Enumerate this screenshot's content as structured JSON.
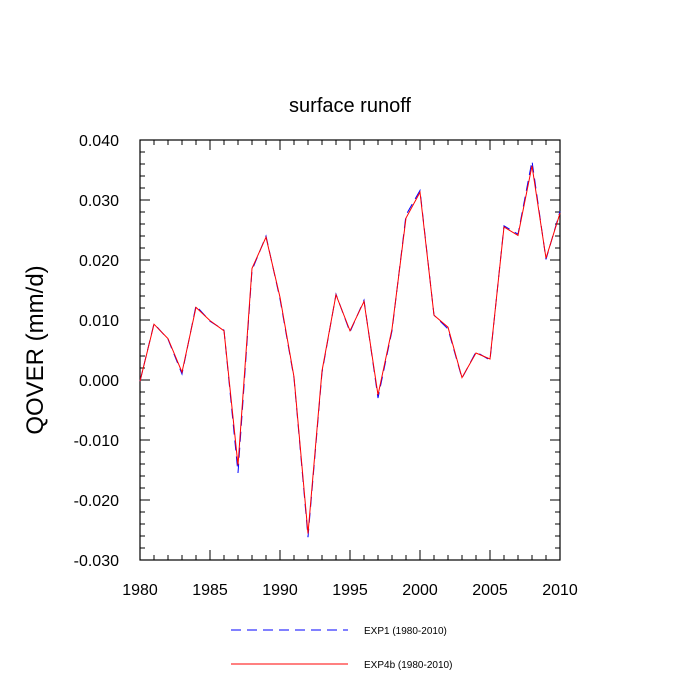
{
  "chart_data": {
    "type": "line",
    "title": "surface runoff",
    "ylabel": "QOVER  (mm/d)",
    "xlabel": "",
    "xlim": [
      1980,
      2010
    ],
    "ylim": [
      -0.03,
      0.04
    ],
    "x_ticks": [
      1980,
      1985,
      1990,
      1995,
      2000,
      2005,
      2010
    ],
    "x_tick_labels": [
      "1980",
      "1985",
      "1990",
      "1995",
      "2000",
      "2005",
      "2010"
    ],
    "y_ticks": [
      -0.03,
      -0.02,
      -0.01,
      0.0,
      0.01,
      0.02,
      0.03,
      0.04
    ],
    "y_tick_labels": [
      "-0.030",
      "-0.020",
      "-0.010",
      "0.000",
      "0.010",
      "0.020",
      "0.030",
      "0.040"
    ],
    "grid": false,
    "legend_position": "bottom",
    "x": [
      1980,
      1981,
      1982,
      1983,
      1984,
      1985,
      1986,
      1987,
      1988,
      1989,
      1990,
      1991,
      1992,
      1993,
      1994,
      1995,
      1996,
      1997,
      1998,
      1999,
      2000,
      2001,
      2002,
      2003,
      2004,
      2005,
      2006,
      2007,
      2008,
      2009,
      2010
    ],
    "series": [
      {
        "name": "EXP1 (1980-2010)",
        "color": "#0000ff",
        "dash": "dashed",
        "values": [
          -0.0002,
          0.0094,
          0.0068,
          0.001,
          0.0124,
          0.0098,
          0.0083,
          -0.0155,
          0.0183,
          0.024,
          0.0135,
          0.0003,
          -0.0262,
          0.0012,
          0.0143,
          0.008,
          0.0133,
          -0.003,
          0.0082,
          0.0275,
          0.0316,
          0.0108,
          0.0085,
          0.0003,
          0.0047,
          0.0033,
          0.0257,
          0.0243,
          0.0365,
          0.0201,
          0.0281
        ]
      },
      {
        "name": "EXP4b (1980-2010)",
        "color": "#ff0000",
        "dash": "solid",
        "values": [
          -0.0002,
          0.0093,
          0.0069,
          0.0013,
          0.0121,
          0.0099,
          0.0082,
          -0.0142,
          0.0186,
          0.0238,
          0.0138,
          0.0005,
          -0.0256,
          0.0015,
          0.0142,
          0.0082,
          0.0131,
          -0.0025,
          0.0085,
          0.027,
          0.0313,
          0.0108,
          0.0088,
          0.0004,
          0.0045,
          0.0035,
          0.0255,
          0.0241,
          0.0357,
          0.0203,
          0.0278
        ]
      }
    ]
  }
}
